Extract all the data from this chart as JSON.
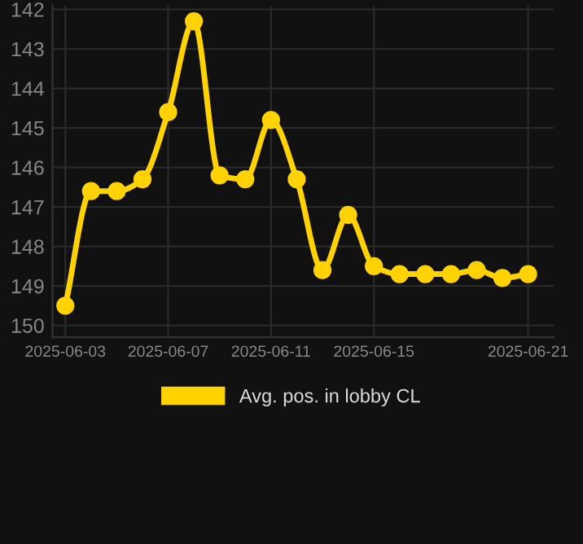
{
  "chart_data": {
    "type": "line",
    "x": [
      "2025-06-03",
      "2025-06-04",
      "2025-06-05",
      "2025-06-06",
      "2025-06-07",
      "2025-06-08",
      "2025-06-09",
      "2025-06-10",
      "2025-06-11",
      "2025-06-12",
      "2025-06-13",
      "2025-06-14",
      "2025-06-15",
      "2025-06-16",
      "2025-06-17",
      "2025-06-18",
      "2025-06-19",
      "2025-06-20",
      "2025-06-21"
    ],
    "series": [
      {
        "name": "Avg. pos. in lobby CL",
        "color": "#ffd200",
        "values": [
          149.5,
          146.6,
          146.6,
          146.3,
          144.6,
          142.3,
          146.2,
          146.3,
          144.8,
          146.3,
          148.6,
          147.2,
          148.5,
          148.7,
          148.7,
          148.7,
          148.6,
          148.8,
          148.7
        ]
      }
    ],
    "ylim": [
      150.3,
      141.9
    ],
    "yticks": [
      142,
      143,
      144,
      145,
      146,
      147,
      148,
      149,
      150
    ],
    "xlim": [
      "2025-06-02T12:00",
      "2025-06-22"
    ],
    "xticks": [
      "2025-06-03",
      "2025-06-07",
      "2025-06-11",
      "2025-06-15",
      "2025-06-21"
    ],
    "grid": true,
    "legend": "bottom",
    "marker": "circle",
    "line_style": "solid"
  }
}
